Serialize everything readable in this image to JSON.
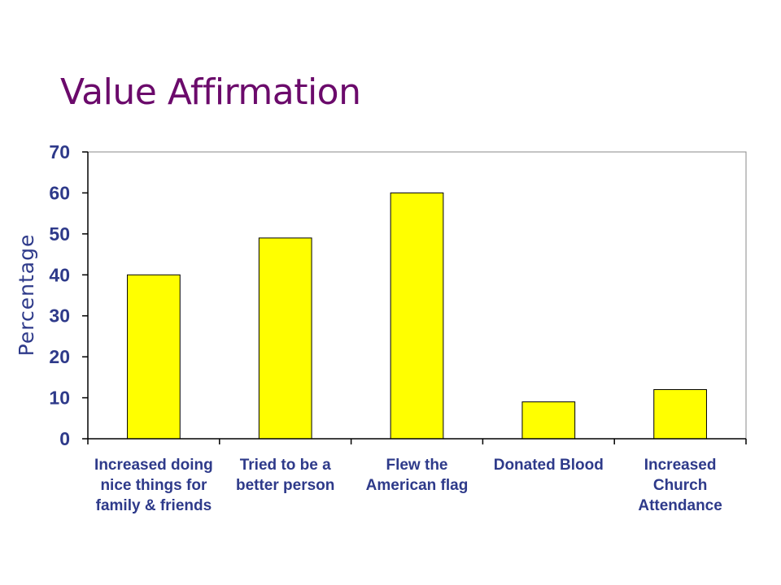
{
  "page": {
    "title": "Value Affirmation"
  },
  "chart_data": {
    "type": "bar",
    "title": "",
    "xlabel": "",
    "ylabel": "Percentage",
    "ylim": [
      0,
      70
    ],
    "yticks": [
      0,
      10,
      20,
      30,
      40,
      50,
      60,
      70
    ],
    "grid": false,
    "categories": [
      [
        "Increased doing",
        "nice things for",
        "family & friends"
      ],
      [
        "Tried to be a",
        "better person"
      ],
      [
        "Flew the",
        "American flag"
      ],
      [
        "Donated Blood"
      ],
      [
        "Increased",
        "Church",
        "Attendance"
      ]
    ],
    "values": [
      40,
      49,
      60,
      9,
      12
    ],
    "colors": {
      "bar": "#ffff00",
      "bar_outline": "#000000",
      "axis_text": "#2e3a8a",
      "title": "#6b0a6b"
    }
  }
}
